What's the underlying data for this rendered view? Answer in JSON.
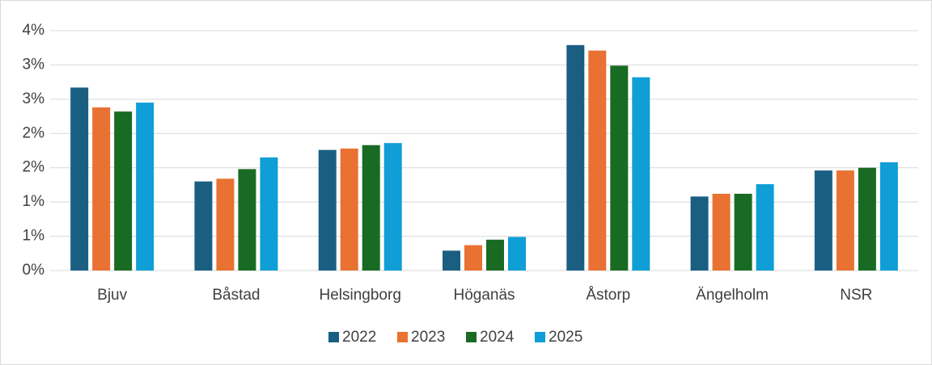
{
  "chart_data": {
    "type": "bar",
    "categories": [
      "Bjuv",
      "Båstad",
      "Helsingborg",
      "Höganäs",
      "Åstorp",
      "Ängelholm",
      "NSR"
    ],
    "series": [
      {
        "name": "2022",
        "color": "#1a5f82",
        "values": [
          2.67,
          1.3,
          1.76,
          0.29,
          3.29,
          1.08,
          1.46
        ]
      },
      {
        "name": "2023",
        "color": "#e97132",
        "values": [
          2.38,
          1.34,
          1.78,
          0.37,
          3.21,
          1.12,
          1.46
        ]
      },
      {
        "name": "2024",
        "color": "#196b24",
        "values": [
          2.32,
          1.48,
          1.83,
          0.45,
          2.99,
          1.12,
          1.5
        ]
      },
      {
        "name": "2025",
        "color": "#0f9ed5",
        "values": [
          2.45,
          1.65,
          1.86,
          0.49,
          2.82,
          1.26,
          1.58
        ]
      }
    ],
    "ylim": [
      0,
      3.5
    ],
    "yticks": [
      {
        "value": 0,
        "label": "0%"
      },
      {
        "value": 0.5,
        "label": "1%"
      },
      {
        "value": 1,
        "label": "1%"
      },
      {
        "value": 1.5,
        "label": "2%"
      },
      {
        "value": 2,
        "label": "2%"
      },
      {
        "value": 2.5,
        "label": "3%"
      },
      {
        "value": 3,
        "label": "3%"
      },
      {
        "value": 3.5,
        "label": "4%"
      }
    ],
    "grid": true,
    "legend": "bottom"
  }
}
